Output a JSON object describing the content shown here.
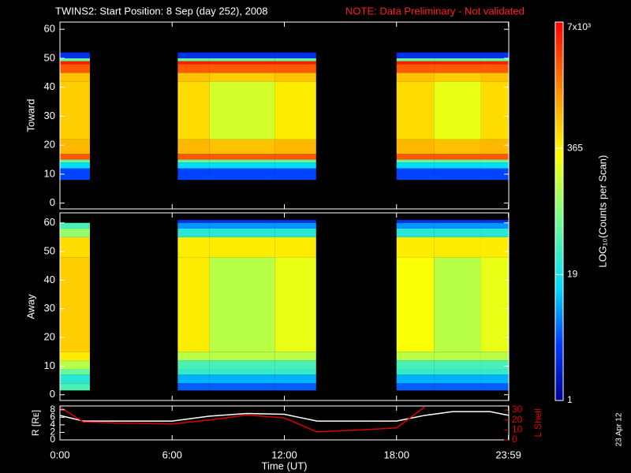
{
  "header": {
    "title": "TWINS2: Start Position:  8 Sep (day 252), 2008",
    "note": "NOTE: Data Preliminary - Not validated",
    "date_stamp": "23 Apr 12"
  },
  "chart_data": [
    {
      "type": "heatmap",
      "ylabel": "Toward",
      "x_bins": [
        0,
        1.6,
        6.3,
        8,
        11.5,
        13.7,
        18,
        20,
        22.5,
        24
      ],
      "y_bins": [
        0,
        8,
        12,
        14,
        15,
        17,
        22,
        42,
        45,
        48,
        49,
        50,
        52,
        64
      ],
      "values": [
        [
          null,
          null,
          null,
          null,
          null,
          null,
          null,
          null,
          null
        ],
        [
          4,
          null,
          4,
          4,
          4,
          null,
          4,
          4,
          4
        ],
        [
          15,
          null,
          15,
          15,
          15,
          null,
          15,
          15,
          15
        ],
        [
          60,
          null,
          60,
          60,
          60,
          null,
          60,
          60,
          60
        ],
        [
          2500,
          null,
          2500,
          2500,
          2500,
          null,
          2500,
          2500,
          2500
        ],
        [
          800,
          null,
          800,
          700,
          800,
          null,
          800,
          700,
          800
        ],
        [
          600,
          null,
          500,
          200,
          400,
          null,
          500,
          250,
          500
        ],
        [
          700,
          null,
          700,
          600,
          700,
          null,
          700,
          600,
          700
        ],
        [
          2500,
          null,
          2500,
          2500,
          2500,
          null,
          2500,
          2500,
          2500
        ],
        [
          5000,
          null,
          5000,
          5000,
          5000,
          null,
          5000,
          5000,
          5000
        ],
        [
          60,
          null,
          60,
          60,
          60,
          null,
          60,
          60,
          60
        ],
        [
          3,
          null,
          3,
          3,
          3,
          null,
          3,
          3,
          3
        ],
        [
          null,
          null,
          null,
          null,
          null,
          null,
          null,
          null,
          null
        ]
      ],
      "xlim": [
        0,
        24
      ],
      "ylim": [
        -2,
        62.5
      ],
      "yticks": [
        0,
        10,
        20,
        30,
        40,
        50,
        60
      ],
      "xticks": [
        {
          "value": 0,
          "label": "0:00"
        },
        {
          "value": 6,
          "label": "6:00"
        },
        {
          "value": 12,
          "label": "12:00"
        },
        {
          "value": 18,
          "label": "18:00"
        },
        {
          "value": 23.983,
          "label": "23:59"
        }
      ],
      "zscale": "log",
      "zlim": [
        1,
        7000
      ],
      "zticks": [
        1,
        19,
        365,
        {
          "value": 7000,
          "label": "7x10³"
        }
      ],
      "zlabel": "LOG₁₀(Counts per Scan)"
    },
    {
      "type": "heatmap",
      "ylabel": "Away",
      "x_bins": [
        0,
        1.6,
        6.3,
        8,
        11.5,
        13.7,
        18,
        20,
        22.5,
        24
      ],
      "y_bins": [
        0,
        1.5,
        4,
        7,
        9,
        12,
        15,
        48,
        55,
        58,
        60,
        61,
        64
      ],
      "values": [
        [
          null,
          null,
          null,
          null,
          null,
          null,
          null,
          null,
          null
        ],
        [
          40,
          null,
          5,
          5,
          5,
          null,
          5,
          5,
          5
        ],
        [
          25,
          null,
          10,
          10,
          10,
          null,
          10,
          10,
          10
        ],
        [
          60,
          null,
          30,
          30,
          30,
          null,
          30,
          30,
          30
        ],
        [
          150,
          null,
          40,
          40,
          40,
          null,
          40,
          40,
          40
        ],
        [
          400,
          null,
          150,
          150,
          150,
          null,
          150,
          150,
          150
        ],
        [
          600,
          null,
          400,
          150,
          250,
          null,
          300,
          150,
          250
        ],
        [
          500,
          null,
          400,
          400,
          400,
          null,
          400,
          400,
          400
        ],
        [
          100,
          null,
          25,
          25,
          25,
          null,
          25,
          25,
          25
        ],
        [
          40,
          null,
          8,
          8,
          8,
          null,
          8,
          8,
          8
        ],
        [
          null,
          null,
          3,
          3,
          3,
          null,
          3,
          3,
          3
        ],
        [
          null,
          null,
          null,
          null,
          null,
          null,
          null,
          null,
          null
        ]
      ],
      "xlim": [
        0,
        24
      ],
      "ylim": [
        -2,
        63.5
      ],
      "yticks": [
        0,
        10,
        20,
        30,
        40,
        50,
        60
      ],
      "xticks": [
        {
          "value": 0,
          "label": "0:00"
        },
        {
          "value": 6,
          "label": "6:00"
        },
        {
          "value": 12,
          "label": "12:00"
        },
        {
          "value": 18,
          "label": "18:00"
        },
        {
          "value": 23.983,
          "label": "23:59"
        }
      ]
    },
    {
      "type": "line",
      "xlabel": "Time (UT)",
      "ylabel": "R [Rᴇ]",
      "y2label": "L Shell",
      "x": [
        0,
        1.25,
        3,
        6,
        8,
        10,
        12,
        13.75,
        16,
        18,
        19.5,
        21,
        23,
        24
      ],
      "series": [
        {
          "name": "R",
          "color": "#ffffff",
          "values": [
            6.5,
            5,
            5,
            5,
            6.3,
            7,
            6.8,
            5,
            5,
            5,
            6.5,
            7.5,
            7.5,
            6.5
          ]
        },
        {
          "name": "L Shell",
          "color": "#e00000",
          "axis": "y2",
          "values": [
            33,
            18,
            17,
            16,
            20,
            25,
            22,
            8,
            10,
            12,
            33,
            null,
            null,
            null
          ]
        }
      ],
      "xlim": [
        0,
        24
      ],
      "ylim": [
        0,
        9
      ],
      "yticks": [
        0,
        2,
        4,
        6,
        8
      ],
      "y2lim": [
        0,
        34
      ],
      "y2ticks": [
        0,
        10,
        20,
        30
      ],
      "xticks": [
        {
          "value": 0,
          "label": "0:00"
        },
        {
          "value": 6,
          "label": "6:00"
        },
        {
          "value": 12,
          "label": "12:00"
        },
        {
          "value": 18,
          "label": "18:00"
        },
        {
          "value": 23.983,
          "label": "23:59"
        }
      ]
    }
  ]
}
